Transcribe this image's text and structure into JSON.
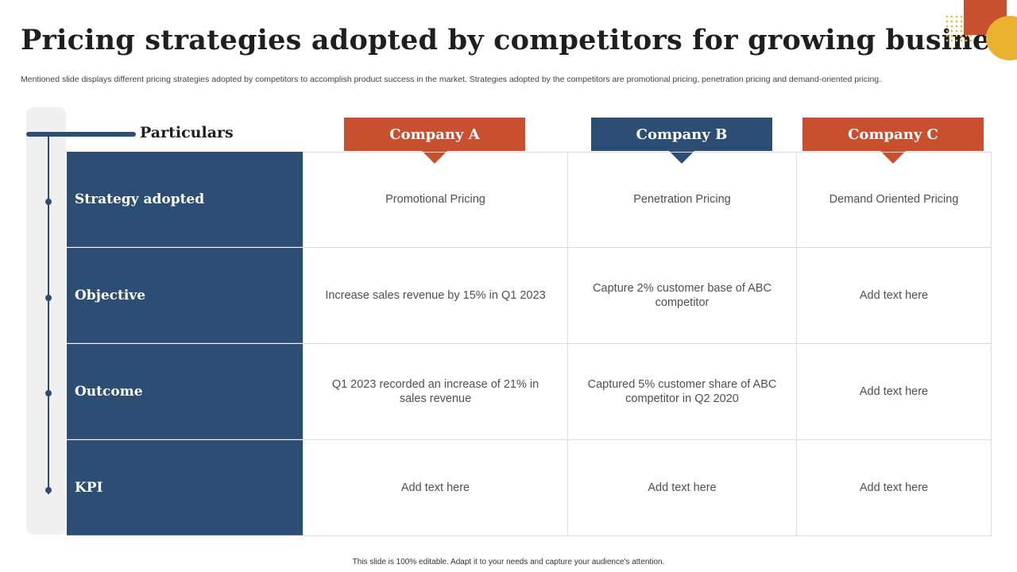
{
  "slide": {
    "title": "Pricing strategies adopted by competitors for growing business",
    "subtitle": "Mentioned slide displays different pricing strategies adopted by competitors to accomplish product success in the market. Strategies adopted by the competitors are promotional pricing, penetration pricing and demand-oriented pricing.",
    "footer": "This slide is 100% editable. Adapt it to your needs and capture your audience's attention."
  },
  "table": {
    "particulars_label": "Particulars",
    "companies": [
      "Company A",
      "Company B",
      "Company C"
    ],
    "rows": [
      {
        "label": "Strategy adopted",
        "cells": [
          "Promotional Pricing",
          "Penetration Pricing",
          "Demand Oriented Pricing"
        ]
      },
      {
        "label": "Objective",
        "cells": [
          "Increase sales revenue by 15% in Q1 2023",
          "Capture 2% customer base of ABC competitor",
          "Add text here"
        ]
      },
      {
        "label": "Outcome",
        "cells": [
          "Q1 2023 recorded an increase of 21%  in sales revenue",
          "Captured 5% customer share of ABC competitor in Q2 2020",
          "Add text here"
        ]
      },
      {
        "label": "KPI",
        "cells": [
          "Add text here",
          "Add text here",
          "Add text here"
        ]
      }
    ]
  },
  "colors": {
    "navy": "#2d4e74",
    "accent_red": "#c9502f",
    "accent_yellow": "#e9b32f"
  }
}
